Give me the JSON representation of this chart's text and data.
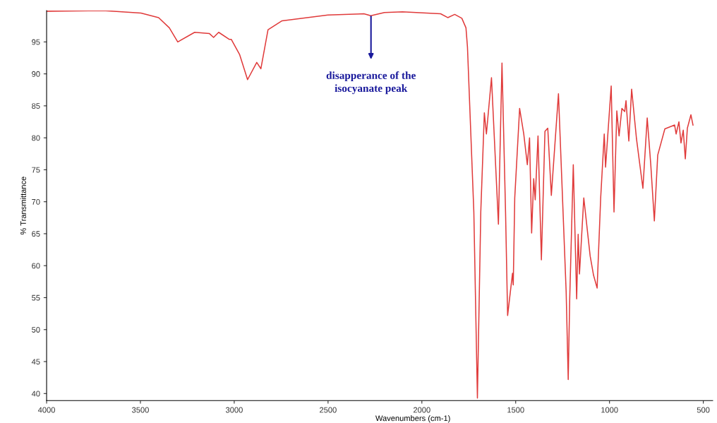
{
  "chart_data": {
    "type": "line",
    "xlabel": "Wavenumbers (cm-1)",
    "ylabel": "% Transmittance",
    "xlim": [
      4000,
      450
    ],
    "ylim": [
      38.9,
      99.9
    ],
    "xticks": [
      4000,
      3500,
      3000,
      2500,
      2000,
      1500,
      1000,
      500
    ],
    "yticks": [
      40,
      45,
      50,
      55,
      60,
      65,
      70,
      75,
      80,
      85,
      90,
      95
    ],
    "grid": false,
    "marker": "none",
    "line_style": "solid",
    "annotations": [
      "disapperance of the\nisocyanate peak"
    ],
    "series": [
      {
        "color": "#e03a3a",
        "x": [
          4000,
          3699,
          3497,
          3403,
          3346,
          3301,
          3211,
          3132,
          3110,
          3083,
          3027,
          3016,
          2971,
          2929,
          2880,
          2858,
          2820,
          2745,
          2501,
          2309,
          2272,
          2200,
          2103,
          1900,
          1862,
          1825,
          1787,
          1765,
          1757,
          1723,
          1704,
          1686,
          1667,
          1656,
          1629,
          1592,
          1573,
          1554,
          1543,
          1517,
          1513,
          1505,
          1479,
          1457,
          1438,
          1426,
          1415,
          1404,
          1396,
          1381,
          1363,
          1344,
          1329,
          1310,
          1272,
          1231,
          1220,
          1212,
          1193,
          1175,
          1167,
          1160,
          1137,
          1103,
          1085,
          1066,
          1047,
          1028,
          1021,
          991,
          976,
          961,
          949,
          934,
          919,
          912,
          897,
          882,
          856,
          822,
          799,
          780,
          761,
          743,
          705,
          653,
          645,
          630,
          619,
          607,
          596,
          585,
          566,
          555
        ],
        "values": [
          99.8,
          99.9,
          99.5,
          98.8,
          97.2,
          95.0,
          96.5,
          96.3,
          95.7,
          96.5,
          95.4,
          95.4,
          93.0,
          89.1,
          91.8,
          90.8,
          96.9,
          98.3,
          99.2,
          99.4,
          99.1,
          99.6,
          99.7,
          99.4,
          98.8,
          99.3,
          98.7,
          97.2,
          94.2,
          68.4,
          39.3,
          68.4,
          83.9,
          80.6,
          89.4,
          66.5,
          91.7,
          68.4,
          52.2,
          58.8,
          57.0,
          70.6,
          84.6,
          80.6,
          75.8,
          80.0,
          65.1,
          73.6,
          70.3,
          80.3,
          60.9,
          81.0,
          81.5,
          71.0,
          86.9,
          55.9,
          42.2,
          54.8,
          75.8,
          54.8,
          64.9,
          58.7,
          70.6,
          61.5,
          58.5,
          56.5,
          70.6,
          80.6,
          75.4,
          88.1,
          68.4,
          84.2,
          80.3,
          84.6,
          84.1,
          85.8,
          79.5,
          87.6,
          79.8,
          72.1,
          83.1,
          75.8,
          67.0,
          77.3,
          81.4,
          82.0,
          80.6,
          82.5,
          79.2,
          81.2,
          76.7,
          81.5,
          83.6,
          82.0
        ]
      }
    ]
  }
}
